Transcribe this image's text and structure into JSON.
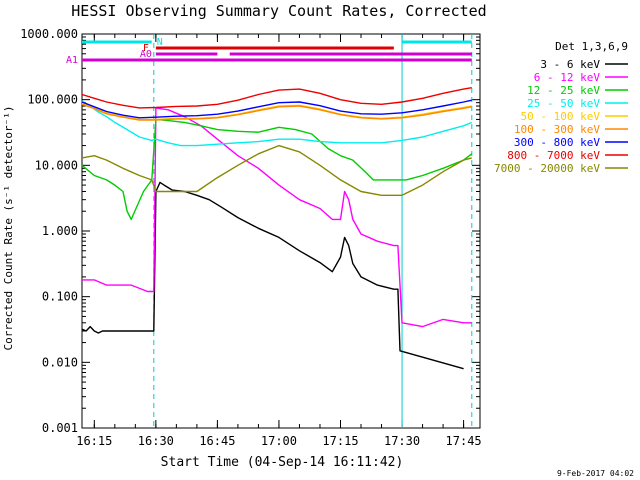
{
  "chart_data": {
    "type": "line",
    "title": "HESSI Observing Summary Count Rates, Corrected",
    "xlabel": "Start Time (04-Sep-14 16:11:42)",
    "ylabel": "Corrected Count Rate (s⁻¹ detector⁻¹)",
    "x_ticks": [
      "16:15",
      "16:30",
      "16:45",
      "17:00",
      "17:15",
      "17:30",
      "17:45"
    ],
    "y_ticks": [
      "1000.000",
      "100.000",
      "10.000",
      "1.000",
      "0.100",
      "0.010",
      "0.001"
    ],
    "xlim": [
      "16:12",
      "17:49"
    ],
    "ylim": [
      0.001,
      1000
    ],
    "y_scale": "log",
    "legend_title": "Det 1,3,6,9",
    "legend_placement": "right",
    "flag_labels": [
      "N",
      "F",
      "A1",
      "A0"
    ],
    "flags": [
      {
        "label": "N",
        "color": "#00e5e5",
        "segments": [
          [
            "16:12",
            "16:29"
          ],
          [
            "17:30",
            "17:47"
          ]
        ]
      },
      {
        "label": "F",
        "color": "#e00000",
        "segments": [
          [
            "16:30",
            "17:28"
          ]
        ]
      },
      {
        "label": "A1",
        "color": "#d000d0",
        "segments": [
          [
            "16:12",
            "17:47"
          ]
        ]
      },
      {
        "label": "A0",
        "color": "#d000d0",
        "segments": [
          [
            "16:30",
            "16:45"
          ],
          [
            "16:48",
            "17:47"
          ]
        ]
      }
    ],
    "vlines": [
      {
        "time": "16:29.5",
        "style": "dashed",
        "color": "#00cccc"
      },
      {
        "time": "17:30",
        "style": "solid",
        "color": "#00cccc"
      },
      {
        "time": "17:47",
        "style": "dashed",
        "color": "#00cccc"
      }
    ],
    "series": [
      {
        "name": "3 - 6 keV",
        "color": "#000000",
        "points": [
          [
            "16:12",
            0.032
          ],
          [
            "16:13",
            0.03
          ],
          [
            "16:14",
            0.035
          ],
          [
            "16:15",
            0.03
          ],
          [
            "16:16",
            0.028
          ],
          [
            "16:17",
            0.03
          ],
          [
            "16:29",
            0.03
          ],
          [
            "16:29.5",
            0.03
          ],
          [
            "16:30",
            4.0
          ],
          [
            "16:31",
            5.5
          ],
          [
            "16:32",
            5.0
          ],
          [
            "16:34",
            4.2
          ],
          [
            "16:37",
            4.0
          ],
          [
            "16:40",
            3.5
          ],
          [
            "16:43",
            3.0
          ],
          [
            "16:46",
            2.3
          ],
          [
            "16:50",
            1.6
          ],
          [
            "16:55",
            1.1
          ],
          [
            "17:00",
            0.8
          ],
          [
            "17:05",
            0.5
          ],
          [
            "17:10",
            0.33
          ],
          [
            "17:13",
            0.24
          ],
          [
            "17:15",
            0.4
          ],
          [
            "17:16",
            0.8
          ],
          [
            "17:17",
            0.6
          ],
          [
            "17:18",
            0.32
          ],
          [
            "17:20",
            0.2
          ],
          [
            "17:24",
            0.15
          ],
          [
            "17:28",
            0.13
          ],
          [
            "17:29",
            0.13
          ],
          [
            "17:29.5",
            0.015
          ],
          [
            "17:45",
            0.008
          ]
        ]
      },
      {
        "name": "6 - 12 keV",
        "color": "#ff00ff",
        "points": [
          [
            "16:12",
            0.18
          ],
          [
            "16:15",
            0.18
          ],
          [
            "16:18",
            0.15
          ],
          [
            "16:21",
            0.15
          ],
          [
            "16:24",
            0.15
          ],
          [
            "16:28",
            0.12
          ],
          [
            "16:29",
            0.12
          ],
          [
            "16:29.5",
            0.12
          ],
          [
            "16:30",
            75
          ],
          [
            "16:33",
            70
          ],
          [
            "16:37",
            55
          ],
          [
            "16:41",
            40
          ],
          [
            "16:45",
            25
          ],
          [
            "16:50",
            14
          ],
          [
            "16:55",
            9
          ],
          [
            "17:00",
            5
          ],
          [
            "17:05",
            3
          ],
          [
            "17:10",
            2.2
          ],
          [
            "17:13",
            1.5
          ],
          [
            "17:15",
            1.5
          ],
          [
            "17:16",
            4
          ],
          [
            "17:17",
            3
          ],
          [
            "17:18",
            1.5
          ],
          [
            "17:20",
            0.9
          ],
          [
            "17:24",
            0.7
          ],
          [
            "17:28",
            0.6
          ],
          [
            "17:29",
            0.6
          ],
          [
            "17:30",
            0.04
          ],
          [
            "17:35",
            0.035
          ],
          [
            "17:40",
            0.045
          ],
          [
            "17:45",
            0.04
          ],
          [
            "17:47",
            0.04
          ]
        ]
      },
      {
        "name": "12 - 25 keV",
        "color": "#00cc00",
        "points": [
          [
            "16:12",
            10
          ],
          [
            "16:15",
            7
          ],
          [
            "16:18",
            6
          ],
          [
            "16:20",
            5
          ],
          [
            "16:22",
            4
          ],
          [
            "16:23",
            2
          ],
          [
            "16:24",
            1.5
          ],
          [
            "16:27",
            4
          ],
          [
            "16:29",
            6
          ],
          [
            "16:30",
            50
          ],
          [
            "16:33",
            48
          ],
          [
            "16:37",
            45
          ],
          [
            "16:41",
            40
          ],
          [
            "16:45",
            35
          ],
          [
            "16:50",
            33
          ],
          [
            "16:55",
            32
          ],
          [
            "17:00",
            38
          ],
          [
            "17:04",
            35
          ],
          [
            "17:08",
            30
          ],
          [
            "17:12",
            18
          ],
          [
            "17:15",
            14
          ],
          [
            "17:18",
            12
          ],
          [
            "17:21",
            8
          ],
          [
            "17:23",
            6
          ],
          [
            "17:27",
            6
          ],
          [
            "17:31",
            6
          ],
          [
            "17:35",
            7
          ],
          [
            "17:40",
            9
          ],
          [
            "17:45",
            12
          ],
          [
            "17:47",
            15
          ]
        ]
      },
      {
        "name": "25 - 50 keV",
        "color": "#00eeee",
        "points": [
          [
            "16:12",
            95
          ],
          [
            "16:14",
            80
          ],
          [
            "16:16",
            65
          ],
          [
            "16:18",
            55
          ],
          [
            "16:20",
            45
          ],
          [
            "16:23",
            35
          ],
          [
            "16:26",
            27
          ],
          [
            "16:29",
            24
          ],
          [
            "16:30",
            25
          ],
          [
            "16:33",
            22
          ],
          [
            "16:36",
            20
          ],
          [
            "16:40",
            20
          ],
          [
            "16:45",
            21
          ],
          [
            "16:50",
            22
          ],
          [
            "16:55",
            23
          ],
          [
            "17:00",
            25
          ],
          [
            "17:05",
            25
          ],
          [
            "17:10",
            23
          ],
          [
            "17:15",
            22
          ],
          [
            "17:20",
            22
          ],
          [
            "17:25",
            22
          ],
          [
            "17:30",
            24
          ],
          [
            "17:35",
            27
          ],
          [
            "17:40",
            33
          ],
          [
            "17:45",
            40
          ],
          [
            "17:47",
            45
          ]
        ]
      },
      {
        "name": "50 - 100 keV",
        "color": "#ffcc00",
        "points": [
          [
            "16:12",
            88
          ],
          [
            "16:15",
            75
          ],
          [
            "16:18",
            63
          ],
          [
            "16:22",
            55
          ],
          [
            "16:26",
            50
          ],
          [
            "16:30",
            50
          ],
          [
            "16:35",
            52
          ],
          [
            "16:40",
            52
          ],
          [
            "16:45",
            54
          ],
          [
            "16:50",
            60
          ],
          [
            "16:55",
            70
          ],
          [
            "17:00",
            80
          ],
          [
            "17:05",
            82
          ],
          [
            "17:10",
            72
          ],
          [
            "17:15",
            60
          ],
          [
            "17:20",
            54
          ],
          [
            "17:25",
            52
          ],
          [
            "17:30",
            54
          ],
          [
            "17:35",
            60
          ],
          [
            "17:40",
            68
          ],
          [
            "17:45",
            76
          ],
          [
            "17:47",
            80
          ]
        ]
      },
      {
        "name": "100 - 300 keV",
        "color": "#ff8800",
        "points": [
          [
            "16:12",
            85
          ],
          [
            "16:15",
            73
          ],
          [
            "16:18",
            61
          ],
          [
            "16:22",
            54
          ],
          [
            "16:26",
            49
          ],
          [
            "16:30",
            49
          ],
          [
            "16:35",
            51
          ],
          [
            "16:40",
            51
          ],
          [
            "16:45",
            53
          ],
          [
            "16:50",
            59
          ],
          [
            "16:55",
            68
          ],
          [
            "17:00",
            78
          ],
          [
            "17:05",
            80
          ],
          [
            "17:10",
            70
          ],
          [
            "17:15",
            59
          ],
          [
            "17:20",
            53
          ],
          [
            "17:25",
            51
          ],
          [
            "17:30",
            53
          ],
          [
            "17:35",
            58
          ],
          [
            "17:40",
            66
          ],
          [
            "17:45",
            74
          ],
          [
            "17:47",
            78
          ]
        ]
      },
      {
        "name": "300 - 800 keV",
        "color": "#0000ff",
        "points": [
          [
            "16:12",
            92
          ],
          [
            "16:15",
            78
          ],
          [
            "16:18",
            66
          ],
          [
            "16:22",
            58
          ],
          [
            "16:26",
            53
          ],
          [
            "16:30",
            54
          ],
          [
            "16:35",
            56
          ],
          [
            "16:40",
            57
          ],
          [
            "16:45",
            60
          ],
          [
            "16:50",
            67
          ],
          [
            "16:55",
            78
          ],
          [
            "17:00",
            90
          ],
          [
            "17:05",
            92
          ],
          [
            "17:10",
            81
          ],
          [
            "17:15",
            67
          ],
          [
            "17:20",
            61
          ],
          [
            "17:25",
            60
          ],
          [
            "17:30",
            63
          ],
          [
            "17:35",
            70
          ],
          [
            "17:40",
            80
          ],
          [
            "17:45",
            92
          ],
          [
            "17:47",
            98
          ]
        ]
      },
      {
        "name": "800 - 7000 keV",
        "color": "#ee0000",
        "points": [
          [
            "16:12",
            120
          ],
          [
            "16:15",
            105
          ],
          [
            "16:18",
            92
          ],
          [
            "16:22",
            82
          ],
          [
            "16:26",
            75
          ],
          [
            "16:30",
            76
          ],
          [
            "16:35",
            79
          ],
          [
            "16:40",
            80
          ],
          [
            "16:45",
            85
          ],
          [
            "16:50",
            98
          ],
          [
            "16:55",
            120
          ],
          [
            "17:00",
            140
          ],
          [
            "17:05",
            145
          ],
          [
            "17:10",
            125
          ],
          [
            "17:15",
            100
          ],
          [
            "17:20",
            88
          ],
          [
            "17:25",
            85
          ],
          [
            "17:30",
            92
          ],
          [
            "17:35",
            105
          ],
          [
            "17:40",
            125
          ],
          [
            "17:45",
            145
          ],
          [
            "17:47",
            152
          ]
        ]
      },
      {
        "name": "7000 - 20000 keV",
        "color": "#888800",
        "points": [
          [
            "16:12",
            13
          ],
          [
            "16:15",
            14
          ],
          [
            "16:18",
            12
          ],
          [
            "16:22",
            9
          ],
          [
            "16:26",
            7
          ],
          [
            "16:29",
            6
          ],
          [
            "16:30",
            4.0
          ],
          [
            "16:35",
            4.0
          ],
          [
            "16:40",
            4.0
          ],
          [
            "16:45",
            6.5
          ],
          [
            "16:50",
            10
          ],
          [
            "16:55",
            15
          ],
          [
            "17:00",
            20
          ],
          [
            "17:05",
            16
          ],
          [
            "17:10",
            10
          ],
          [
            "17:15",
            6
          ],
          [
            "17:20",
            4
          ],
          [
            "17:25",
            3.5
          ],
          [
            "17:30",
            3.5
          ],
          [
            "17:35",
            5
          ],
          [
            "17:40",
            8
          ],
          [
            "17:45",
            12
          ],
          [
            "17:47",
            13
          ]
        ]
      }
    ]
  },
  "footer": {
    "timestamp": "9-Feb-2017 04:02"
  }
}
